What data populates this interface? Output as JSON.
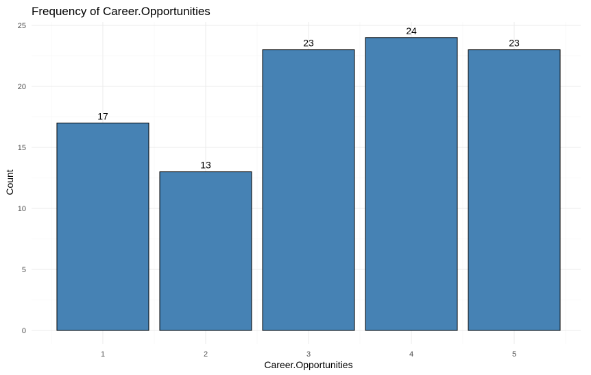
{
  "chart_data": {
    "type": "bar",
    "title": "Frequency of Career.Opportunities",
    "xlabel": "Career.Opportunities",
    "ylabel": "Count",
    "categories": [
      "1",
      "2",
      "3",
      "4",
      "5"
    ],
    "values": [
      17,
      13,
      23,
      24,
      23
    ],
    "data_labels": [
      "17",
      "13",
      "23",
      "24",
      "23"
    ],
    "ylim": [
      0,
      25
    ],
    "yticks": [
      0,
      5,
      10,
      15,
      20,
      25
    ],
    "ytick_labels": [
      "0",
      "5",
      "10",
      "15",
      "20",
      "25"
    ],
    "grid": true,
    "legend": "none",
    "colors": {
      "bar_fill": "#4682b4",
      "bar_stroke": "#000000"
    }
  }
}
